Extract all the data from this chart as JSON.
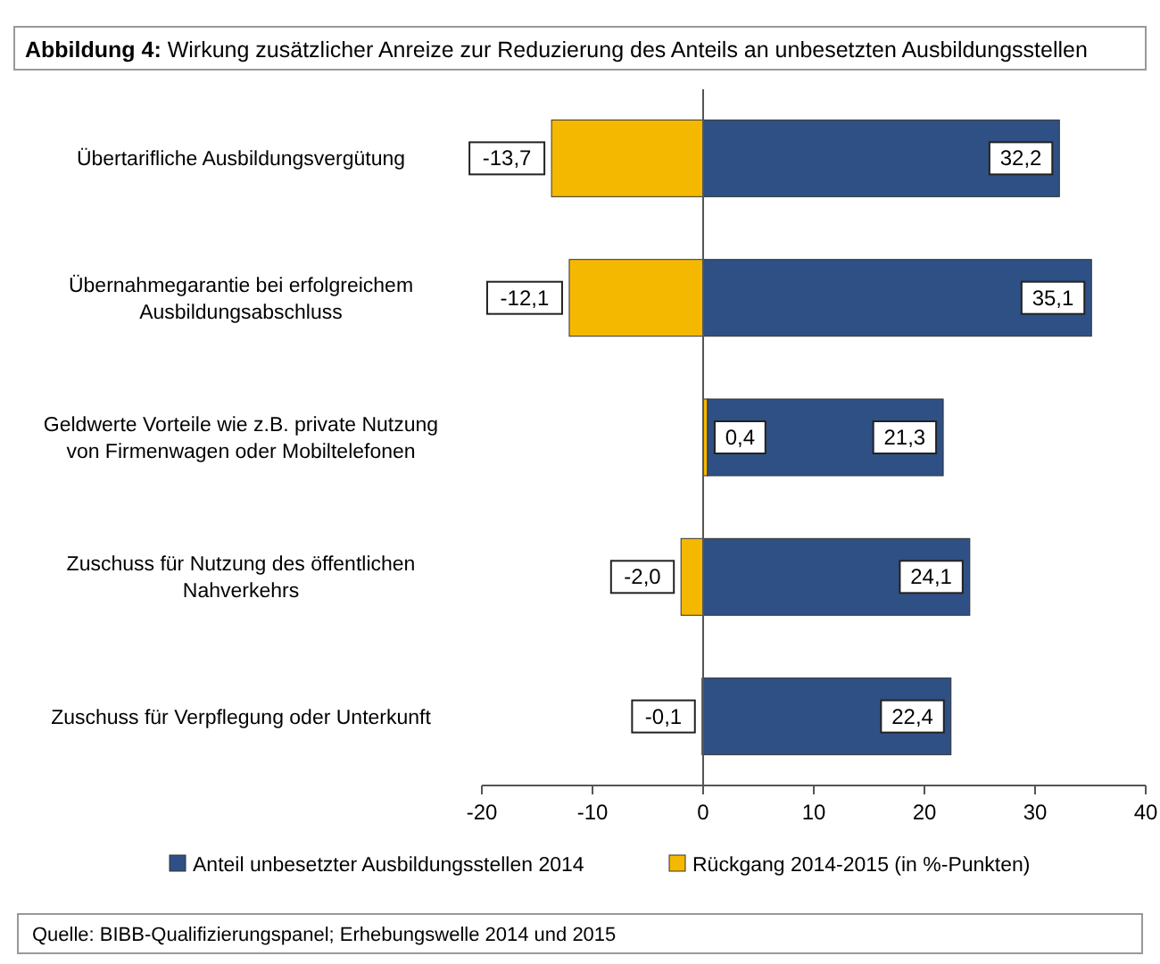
{
  "chart_data": {
    "type": "bar",
    "orientation": "horizontal",
    "title": "Abbildung 4: Wirkung zusätzlicher Anreize zur Reduzierung des Anteils an unbesetzten Ausbildungsstellen",
    "categories": [
      "Übertarifliche Ausbildungsvergütung",
      "Übernahmegarantie bei erfolgreichem Ausbildungsabschluss",
      "Geldwerte Vorteile wie z.B. private Nutzung von Firmenwagen oder Mobiltelefonen",
      "Zuschuss für Nutzung des öffentlichen Nahverkehrs",
      "Zuschuss für Verpflegung oder Unterkunft"
    ],
    "series": [
      {
        "name": "Rückgang 2014-2015 (in %-Punkten)",
        "color": "#f5b800",
        "values": [
          -13.7,
          -12.1,
          0.4,
          -2.0,
          -0.1
        ],
        "value_labels": [
          "-13,7",
          "-12,1",
          "0,4",
          "-2,0",
          "-0,1"
        ]
      },
      {
        "name": "Anteil unbesetzter Ausbildungsstellen 2014",
        "color": "#2f5085",
        "values": [
          32.2,
          35.1,
          21.3,
          24.1,
          22.4
        ],
        "value_labels": [
          "32,2",
          "35,1",
          "21,3",
          "24,1",
          "22,4"
        ]
      }
    ],
    "stacked": true,
    "xlim": [
      -20,
      40
    ],
    "xticks": [
      -20,
      -10,
      0,
      10,
      20,
      30,
      40
    ],
    "legend": "bottom",
    "annotations": [
      "Quelle: BIBB-Qualifizierungspanel; Erhebungswelle 2014 und 2015"
    ]
  }
}
